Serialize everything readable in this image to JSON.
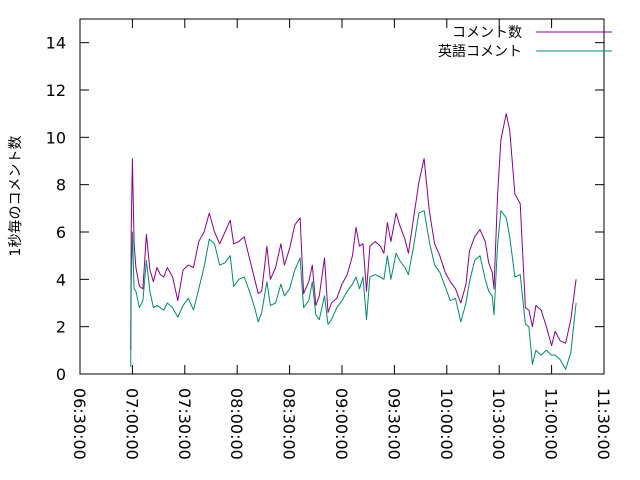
{
  "chart_data": {
    "type": "line",
    "title": "",
    "xlabel": "",
    "ylabel": "1秒毎のコメント数",
    "xlim": [
      "06:30:00",
      "11:30:00"
    ],
    "ylim": [
      0,
      15
    ],
    "x_ticks": [
      "06:30:00",
      "07:00:00",
      "07:30:00",
      "08:00:00",
      "08:30:00",
      "09:00:00",
      "09:30:00",
      "10:00:00",
      "10:30:00",
      "11:00:00",
      "11:30:00"
    ],
    "y_ticks": [
      0,
      2,
      4,
      6,
      8,
      10,
      12,
      14
    ],
    "grid": false,
    "legend": "top-right",
    "series": [
      {
        "name": "コメント数",
        "color": "#8b008b",
        "points": [
          [
            "06:59:00",
            1.0
          ],
          [
            "06:59:20",
            6.0
          ],
          [
            "07:00:00",
            9.1
          ],
          [
            "07:01:00",
            5.5
          ],
          [
            "07:02:00",
            4.5
          ],
          [
            "07:04:00",
            3.7
          ],
          [
            "07:06:00",
            3.6
          ],
          [
            "07:08:00",
            5.9
          ],
          [
            "07:10:00",
            4.4
          ],
          [
            "07:12:00",
            3.9
          ],
          [
            "07:14:00",
            4.5
          ],
          [
            "07:16:00",
            4.2
          ],
          [
            "07:18:00",
            4.1
          ],
          [
            "07:20:00",
            4.5
          ],
          [
            "07:23:00",
            4.1
          ],
          [
            "07:26:00",
            3.1
          ],
          [
            "07:29:00",
            4.4
          ],
          [
            "07:32:00",
            4.6
          ],
          [
            "07:35:00",
            4.5
          ],
          [
            "07:38:00",
            5.6
          ],
          [
            "07:41:00",
            6.0
          ],
          [
            "07:44:00",
            6.8
          ],
          [
            "07:47:00",
            6.0
          ],
          [
            "07:50:00",
            5.5
          ],
          [
            "07:53:00",
            6.0
          ],
          [
            "07:56:00",
            6.5
          ],
          [
            "07:58:00",
            5.5
          ],
          [
            "08:01:00",
            5.6
          ],
          [
            "08:04:00",
            5.8
          ],
          [
            "08:07:00",
            4.9
          ],
          [
            "08:10:00",
            4.0
          ],
          [
            "08:12:00",
            3.4
          ],
          [
            "08:14:00",
            3.5
          ],
          [
            "08:17:00",
            5.4
          ],
          [
            "08:19:00",
            4.0
          ],
          [
            "08:22:00",
            4.5
          ],
          [
            "08:25:00",
            5.5
          ],
          [
            "08:27:00",
            4.6
          ],
          [
            "08:30:00",
            5.3
          ],
          [
            "08:33:00",
            6.3
          ],
          [
            "08:36:00",
            6.6
          ],
          [
            "08:38:00",
            3.4
          ],
          [
            "08:41:00",
            3.9
          ],
          [
            "08:43:00",
            4.6
          ],
          [
            "08:45:00",
            2.9
          ],
          [
            "08:47:00",
            3.3
          ],
          [
            "08:50:00",
            4.9
          ],
          [
            "08:52:00",
            2.6
          ],
          [
            "08:54:00",
            3.0
          ],
          [
            "08:57:00",
            3.2
          ],
          [
            "09:00:00",
            3.8
          ],
          [
            "09:03:00",
            4.2
          ],
          [
            "09:06:00",
            5.0
          ],
          [
            "09:08:00",
            6.2
          ],
          [
            "09:10:00",
            5.4
          ],
          [
            "09:12:00",
            5.5
          ],
          [
            "09:14:00",
            3.5
          ],
          [
            "09:16:00",
            5.4
          ],
          [
            "09:19:00",
            5.6
          ],
          [
            "09:22:00",
            5.4
          ],
          [
            "09:24:00",
            5.1
          ],
          [
            "09:26:00",
            6.4
          ],
          [
            "09:28:00",
            5.6
          ],
          [
            "09:31:00",
            6.8
          ],
          [
            "09:33:00",
            6.3
          ],
          [
            "09:36:00",
            5.7
          ],
          [
            "09:38:00",
            5.1
          ],
          [
            "09:41:00",
            6.6
          ],
          [
            "09:44:00",
            8.1
          ],
          [
            "09:47:00",
            9.1
          ],
          [
            "09:50:00",
            6.9
          ],
          [
            "09:53:00",
            5.5
          ],
          [
            "09:56:00",
            5.0
          ],
          [
            "09:59:00",
            4.3
          ],
          [
            "10:02:00",
            3.9
          ],
          [
            "10:05:00",
            3.6
          ],
          [
            "10:08:00",
            3.0
          ],
          [
            "10:11:00",
            3.8
          ],
          [
            "10:13:00",
            5.2
          ],
          [
            "10:16:00",
            5.8
          ],
          [
            "10:19:00",
            6.1
          ],
          [
            "10:22:00",
            5.6
          ],
          [
            "10:24:00",
            4.7
          ],
          [
            "10:26:00",
            4.3
          ],
          [
            "10:27:00",
            3.6
          ],
          [
            "10:29:00",
            7.5
          ],
          [
            "10:31:00",
            9.9
          ],
          [
            "10:34:00",
            11.0
          ],
          [
            "10:36:00",
            10.3
          ],
          [
            "10:39:00",
            7.6
          ],
          [
            "10:42:00",
            7.2
          ],
          [
            "10:45:00",
            2.8
          ],
          [
            "10:47:00",
            2.7
          ],
          [
            "10:49:00",
            2.0
          ],
          [
            "10:51:00",
            2.9
          ],
          [
            "10:54:00",
            2.7
          ],
          [
            "10:57:00",
            2.0
          ],
          [
            "11:00:00",
            1.2
          ],
          [
            "11:02:00",
            1.8
          ],
          [
            "11:05:00",
            1.4
          ],
          [
            "11:08:00",
            1.3
          ],
          [
            "11:11:00",
            2.3
          ],
          [
            "11:14:00",
            4.0
          ]
        ]
      },
      {
        "name": "英語コメント",
        "color": "#008b6b",
        "points": [
          [
            "06:59:00",
            0.3
          ],
          [
            "06:59:20",
            3.8
          ],
          [
            "07:00:00",
            6.0
          ],
          [
            "07:01:00",
            3.6
          ],
          [
            "07:02:00",
            3.5
          ],
          [
            "07:04:00",
            2.8
          ],
          [
            "07:06:00",
            3.1
          ],
          [
            "07:08:00",
            4.8
          ],
          [
            "07:10:00",
            3.5
          ],
          [
            "07:12:00",
            2.8
          ],
          [
            "07:14:00",
            2.9
          ],
          [
            "07:16:00",
            2.8
          ],
          [
            "07:18:00",
            2.7
          ],
          [
            "07:20:00",
            3.0
          ],
          [
            "07:23:00",
            2.8
          ],
          [
            "07:26:00",
            2.4
          ],
          [
            "07:29:00",
            2.9
          ],
          [
            "07:32:00",
            3.2
          ],
          [
            "07:35:00",
            2.7
          ],
          [
            "07:38:00",
            3.6
          ],
          [
            "07:41:00",
            4.5
          ],
          [
            "07:44:00",
            5.7
          ],
          [
            "07:47:00",
            5.5
          ],
          [
            "07:50:00",
            4.6
          ],
          [
            "07:53:00",
            4.7
          ],
          [
            "07:56:00",
            5.0
          ],
          [
            "07:58:00",
            3.7
          ],
          [
            "08:01:00",
            4.0
          ],
          [
            "08:04:00",
            4.1
          ],
          [
            "08:07:00",
            3.5
          ],
          [
            "08:10:00",
            2.8
          ],
          [
            "08:12:00",
            2.2
          ],
          [
            "08:14:00",
            2.6
          ],
          [
            "08:17:00",
            3.9
          ],
          [
            "08:19:00",
            2.9
          ],
          [
            "08:22:00",
            3.0
          ],
          [
            "08:25:00",
            3.8
          ],
          [
            "08:27:00",
            3.3
          ],
          [
            "08:30:00",
            3.6
          ],
          [
            "08:33:00",
            4.4
          ],
          [
            "08:36:00",
            4.9
          ],
          [
            "08:38:00",
            2.8
          ],
          [
            "08:41:00",
            3.1
          ],
          [
            "08:43:00",
            3.9
          ],
          [
            "08:45:00",
            2.5
          ],
          [
            "08:47:00",
            2.3
          ],
          [
            "08:50:00",
            3.3
          ],
          [
            "08:52:00",
            2.1
          ],
          [
            "08:54:00",
            2.3
          ],
          [
            "08:57:00",
            2.8
          ],
          [
            "09:00:00",
            3.1
          ],
          [
            "09:03:00",
            3.5
          ],
          [
            "09:06:00",
            3.8
          ],
          [
            "09:08:00",
            4.1
          ],
          [
            "09:10:00",
            3.6
          ],
          [
            "09:12:00",
            4.1
          ],
          [
            "09:14:00",
            2.3
          ],
          [
            "09:16:00",
            4.1
          ],
          [
            "09:19:00",
            4.2
          ],
          [
            "09:22:00",
            4.1
          ],
          [
            "09:24:00",
            4.0
          ],
          [
            "09:26:00",
            5.0
          ],
          [
            "09:28:00",
            4.0
          ],
          [
            "09:31:00",
            5.1
          ],
          [
            "09:33:00",
            4.8
          ],
          [
            "09:36:00",
            4.5
          ],
          [
            "09:38:00",
            4.2
          ],
          [
            "09:41:00",
            5.4
          ],
          [
            "09:44:00",
            6.8
          ],
          [
            "09:47:00",
            6.9
          ],
          [
            "09:50:00",
            5.6
          ],
          [
            "09:53:00",
            4.6
          ],
          [
            "09:56:00",
            4.3
          ],
          [
            "09:59:00",
            3.7
          ],
          [
            "10:02:00",
            3.1
          ],
          [
            "10:05:00",
            3.2
          ],
          [
            "10:08:00",
            2.2
          ],
          [
            "10:11:00",
            3.0
          ],
          [
            "10:13:00",
            3.9
          ],
          [
            "10:16:00",
            4.8
          ],
          [
            "10:19:00",
            5.0
          ],
          [
            "10:22:00",
            4.0
          ],
          [
            "10:24:00",
            3.5
          ],
          [
            "10:26:00",
            3.3
          ],
          [
            "10:27:00",
            2.5
          ],
          [
            "10:29:00",
            5.4
          ],
          [
            "10:31:00",
            6.9
          ],
          [
            "10:34:00",
            6.6
          ],
          [
            "10:36:00",
            5.8
          ],
          [
            "10:39:00",
            4.1
          ],
          [
            "10:42:00",
            4.2
          ],
          [
            "10:45:00",
            2.1
          ],
          [
            "10:47:00",
            2.0
          ],
          [
            "10:49:00",
            0.4
          ],
          [
            "10:51:00",
            1.0
          ],
          [
            "10:54:00",
            0.8
          ],
          [
            "10:57:00",
            1.0
          ],
          [
            "11:00:00",
            0.8
          ],
          [
            "11:02:00",
            0.8
          ],
          [
            "11:05:00",
            0.6
          ],
          [
            "11:08:00",
            0.2
          ],
          [
            "11:11:00",
            0.9
          ],
          [
            "11:14:00",
            3.0
          ]
        ]
      }
    ]
  }
}
